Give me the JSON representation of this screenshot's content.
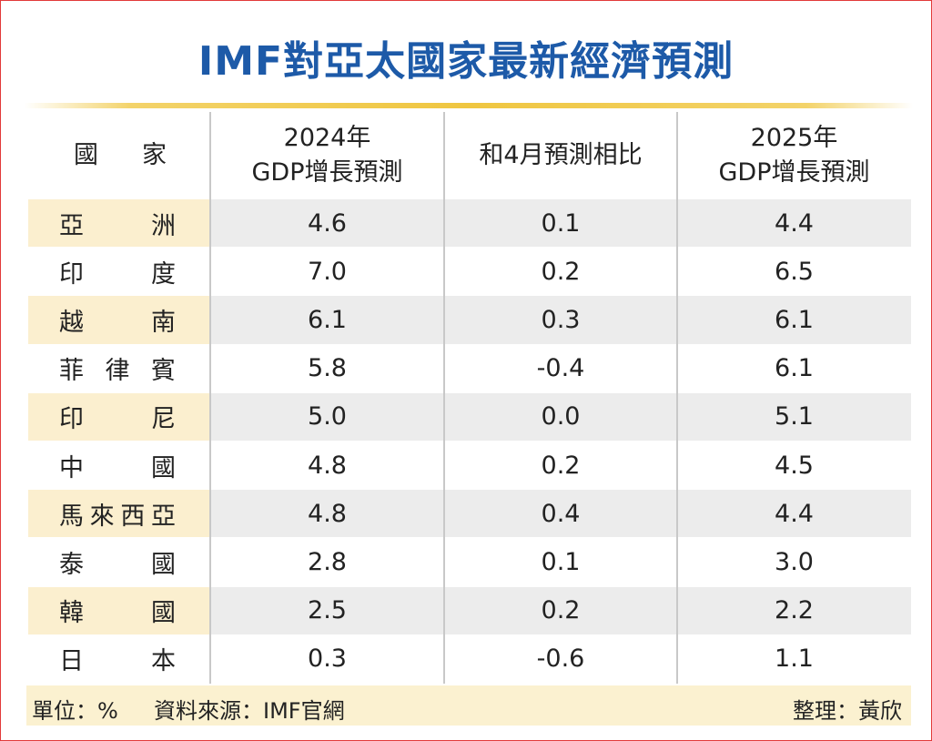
{
  "title": "IMF對亞太國家最新經濟預測",
  "table": {
    "header": [
      "國家",
      "2024年\nGDP增長預測",
      "和4月預測相比",
      "2025年\nGDP增長預測"
    ],
    "rows": [
      [
        "亞洲",
        "4.6",
        "0.1",
        "4.4"
      ],
      [
        "印度",
        "7.0",
        "0.2",
        "6.5"
      ],
      [
        "越南",
        "6.1",
        "0.3",
        "6.1"
      ],
      [
        "菲律賓",
        "5.8",
        "-0.4",
        "6.1"
      ],
      [
        "印尼",
        "5.0",
        "0.0",
        "5.1"
      ],
      [
        "中國",
        "4.8",
        "0.2",
        "4.5"
      ],
      [
        "馬來西亞",
        "4.8",
        "0.4",
        "4.4"
      ],
      [
        "泰國",
        "2.8",
        "0.1",
        "3.0"
      ],
      [
        "韓國",
        "2.5",
        "0.2",
        "2.2"
      ],
      [
        "日本",
        "0.3",
        "-0.6",
        "1.1"
      ]
    ]
  },
  "footer": {
    "unit": "單位：%",
    "source": "資料來源：IMF官網",
    "editor": "整理：黃欣"
  }
}
